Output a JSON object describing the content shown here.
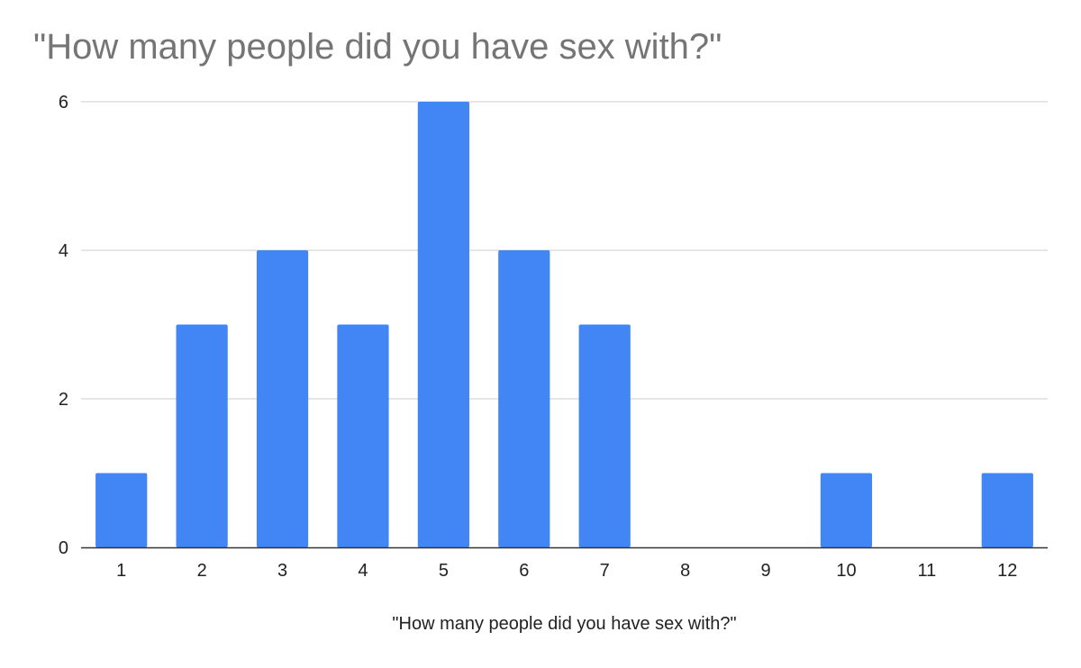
{
  "chart_data": {
    "type": "bar",
    "title": "\"How many people did you have sex with?\"",
    "xlabel": "\"How many people did you have sex with?\"",
    "ylabel": "",
    "categories": [
      "1",
      "2",
      "3",
      "4",
      "5",
      "6",
      "7",
      "8",
      "9",
      "10",
      "11",
      "12"
    ],
    "values": [
      1,
      3,
      4,
      3,
      6,
      4,
      3,
      0,
      0,
      1,
      0,
      1
    ],
    "ylim": [
      0,
      6
    ],
    "yticks": [
      0,
      2,
      4,
      6
    ],
    "grid": true,
    "legend": "none",
    "colors": {
      "bar": "#4285f4",
      "grid": "#cccccc",
      "axis": "#333333"
    }
  }
}
